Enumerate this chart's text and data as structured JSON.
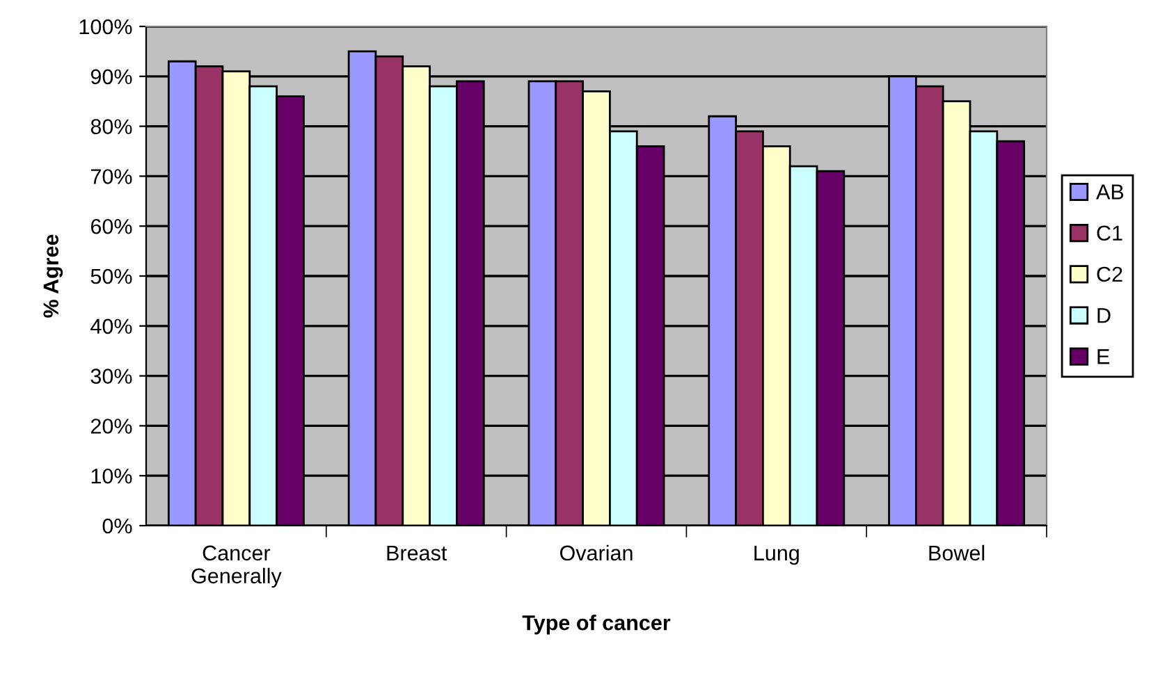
{
  "chart_data": {
    "type": "bar",
    "xlabel": "Type of cancer",
    "ylabel": "% Agree",
    "categories": [
      "Cancer\nGenerally",
      "Breast",
      "Ovarian",
      "Lung",
      "Bowel"
    ],
    "series": [
      {
        "name": "AB",
        "color": "#9999ff",
        "values": [
          93,
          95,
          89,
          82,
          90
        ]
      },
      {
        "name": "C1",
        "color": "#993366",
        "values": [
          92,
          94,
          89,
          79,
          88
        ]
      },
      {
        "name": "C2",
        "color": "#ffffcc",
        "values": [
          91,
          92,
          87,
          76,
          85
        ]
      },
      {
        "name": "D",
        "color": "#ccffff",
        "values": [
          88,
          88,
          79,
          72,
          79
        ]
      },
      {
        "name": "E",
        "color": "#660066",
        "values": [
          86,
          89,
          76,
          71,
          77
        ]
      }
    ],
    "ylim": [
      0,
      100
    ],
    "yticks": [
      {
        "value": 0,
        "label": "0%"
      },
      {
        "value": 10,
        "label": "10%"
      },
      {
        "value": 20,
        "label": "20%"
      },
      {
        "value": 30,
        "label": "30%"
      },
      {
        "value": 40,
        "label": "40%"
      },
      {
        "value": 50,
        "label": "50%"
      },
      {
        "value": 60,
        "label": "60%"
      },
      {
        "value": 70,
        "label": "70%"
      },
      {
        "value": 80,
        "label": "80%"
      },
      {
        "value": 90,
        "label": "90%"
      },
      {
        "value": 100,
        "label": "100%"
      }
    ],
    "grid": "y",
    "legend": "right"
  }
}
